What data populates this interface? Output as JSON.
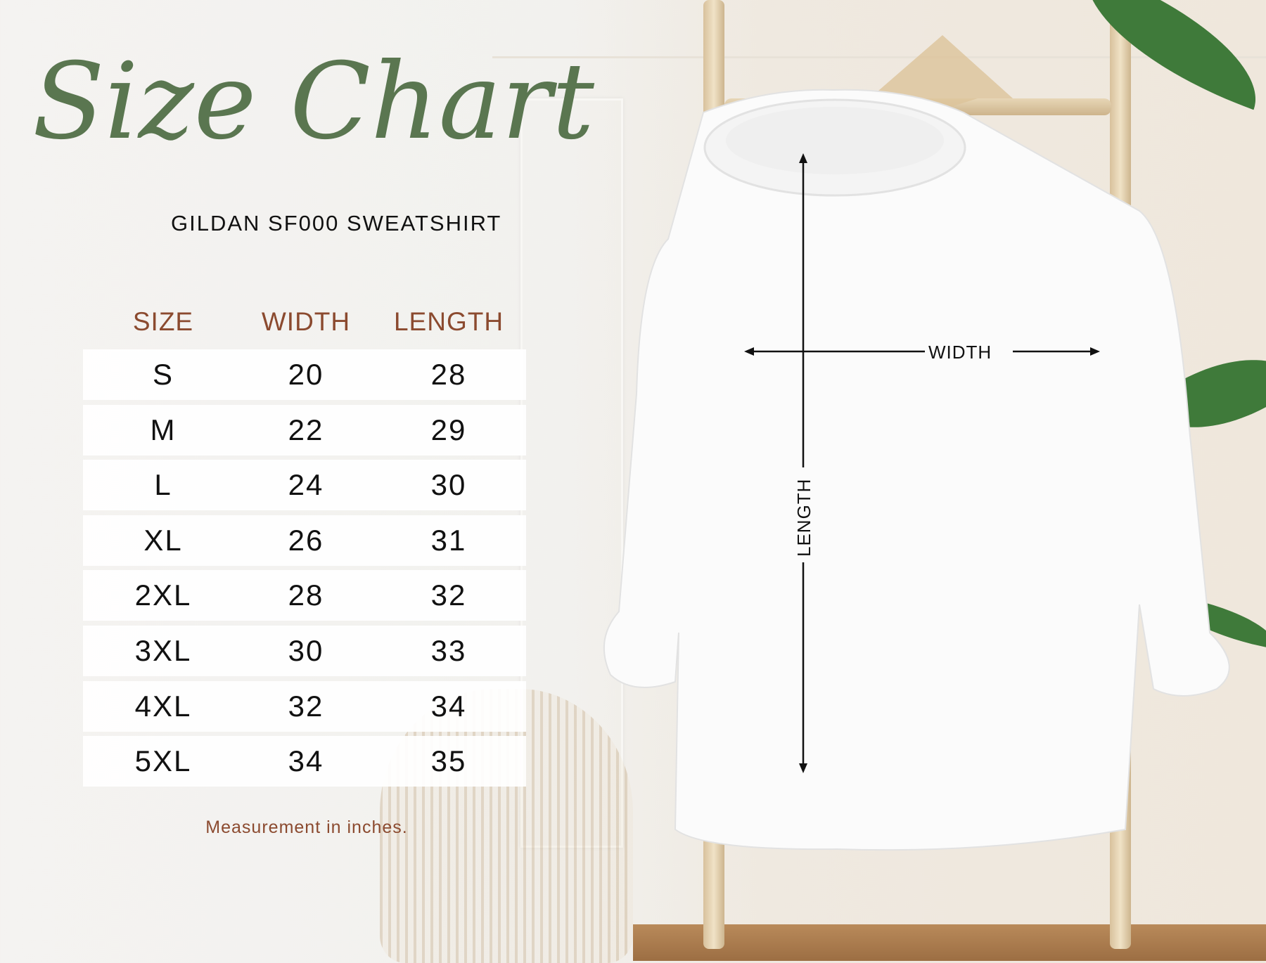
{
  "title": "Size Chart",
  "subtitle": "GILDAN SF000 SWEATSHIRT",
  "table": {
    "headers": [
      "SIZE",
      "WIDTH",
      "LENGTH"
    ],
    "rows": [
      [
        "S",
        "20",
        "28"
      ],
      [
        "M",
        "22",
        "29"
      ],
      [
        "L",
        "24",
        "30"
      ],
      [
        "XL",
        "26",
        "31"
      ],
      [
        "2XL",
        "28",
        "32"
      ],
      [
        "3XL",
        "30",
        "33"
      ],
      [
        "4XL",
        "32",
        "34"
      ],
      [
        "5XL",
        "34",
        "35"
      ]
    ]
  },
  "note": "Measurement in inches.",
  "diagram": {
    "width_label": "WIDTH",
    "length_label": "LENGTH"
  },
  "colors": {
    "title": "#5a7650",
    "header": "#8b4a2f",
    "text": "#111111"
  }
}
